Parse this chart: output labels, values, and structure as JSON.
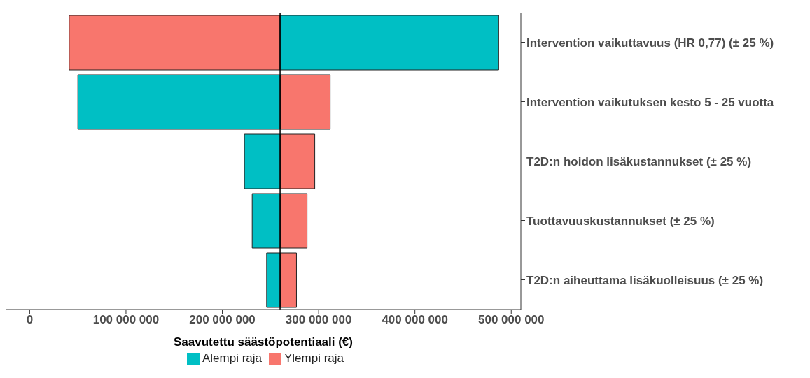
{
  "chart_data": {
    "type": "bar",
    "orientation": "horizontal",
    "xlabel": "Saavutettu säästöpotentiaali (€)",
    "categories": [
      "Intervention vaikuttavuus (HR 0,77) (± 25 %)",
      "Intervention vaikutuksen kesto 5 - 25 vuotta",
      "T2D:n hoidon lisäkustannukset (± 25 %)",
      "Tuottavuuskustannukset (± 25 %)",
      "T2D:n aiheuttama lisäkuolleisuus (± 25 %)"
    ],
    "series": [
      {
        "name": "Ylempi raja",
        "color": "#f8766d",
        "base": [
          260000000,
          260000000,
          260000000,
          260000000,
          260000000
        ],
        "values": [
          -219000000,
          52000000,
          36000000,
          28000000,
          17000000
        ]
      },
      {
        "name": "Alempi raja",
        "color": "#00bfc4",
        "base": [
          260000000,
          260000000,
          260000000,
          260000000,
          260000000
        ],
        "values": [
          227000000,
          -210000000,
          -37000000,
          -29000000,
          -14000000
        ]
      }
    ],
    "xlim": [
      -25000000,
      510000000
    ],
    "xticks": [
      {
        "value": 0,
        "label": "0"
      },
      {
        "value": 100000000,
        "label": "100 000 000"
      },
      {
        "value": 200000000,
        "label": "200 000 000"
      },
      {
        "value": 300000000,
        "label": "300 000 000"
      },
      {
        "value": 400000000,
        "label": "400 000 000"
      },
      {
        "value": 500000000,
        "label": "500 000 000"
      }
    ],
    "ref_lines": [
      {
        "axis": "x",
        "value": 260000000,
        "label": null,
        "color": "#000000"
      }
    ],
    "legend": "bottom",
    "grid": false
  }
}
